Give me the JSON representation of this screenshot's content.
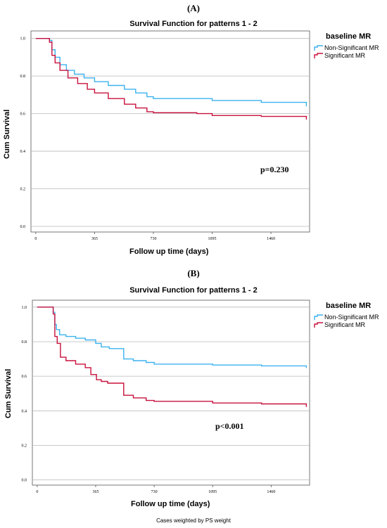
{
  "footnote": "Cases weighted by PS weight",
  "colors": {
    "non_significant": "#3bb2f0",
    "significant": "#c8103c",
    "grid": "#b8b8b8"
  },
  "chart_data": [
    {
      "panel_label": "(A)",
      "type": "line",
      "title": "Survival Function for patterns 1 - 2",
      "xlabel": "Follow up time (days)",
      "ylabel": "Cum Survival",
      "xticks": [
        0,
        365,
        730,
        1095,
        1460
      ],
      "yticks": [
        0.0,
        0.2,
        0.4,
        0.6,
        0.8,
        1.0
      ],
      "xlim": [
        -30,
        1700
      ],
      "ylim": [
        -0.03,
        1.04
      ],
      "legend_title": "baseline MR",
      "legend_position": "top-right",
      "annotation": "p=0.230",
      "grid": "horizontal",
      "series": [
        {
          "name": "Non-Significant MR",
          "color": "#3bb2f0",
          "x": [
            0,
            60,
            85,
            100,
            120,
            150,
            190,
            240,
            300,
            365,
            450,
            550,
            620,
            690,
            730,
            1000,
            1095,
            1400,
            1680
          ],
          "y": [
            1.0,
            1.0,
            0.99,
            0.94,
            0.9,
            0.86,
            0.83,
            0.81,
            0.79,
            0.77,
            0.75,
            0.73,
            0.71,
            0.69,
            0.68,
            0.68,
            0.67,
            0.66,
            0.65
          ]
        },
        {
          "name": "Significant MR",
          "color": "#c8103c",
          "x": [
            0,
            60,
            85,
            100,
            120,
            150,
            200,
            260,
            320,
            365,
            450,
            550,
            620,
            690,
            730,
            1000,
            1095,
            1400,
            1680
          ],
          "y": [
            1.0,
            1.0,
            0.98,
            0.91,
            0.87,
            0.83,
            0.79,
            0.76,
            0.73,
            0.71,
            0.68,
            0.65,
            0.63,
            0.61,
            0.605,
            0.6,
            0.59,
            0.585,
            0.58
          ]
        }
      ]
    },
    {
      "panel_label": "(B)",
      "type": "line",
      "title": "Survival Function for patterns 1 - 2",
      "xlabel": "Follow up time (days)",
      "ylabel": "Cum Survival",
      "xticks": [
        0,
        365,
        730,
        1095,
        1460
      ],
      "yticks": [
        0.0,
        0.2,
        0.4,
        0.6,
        0.8,
        1.0
      ],
      "xlim": [
        -30,
        1700
      ],
      "ylim": [
        -0.03,
        1.04
      ],
      "legend_title": "baseline MR",
      "legend_position": "top-right",
      "annotation": "p<0.001",
      "grid": "horizontal",
      "series": [
        {
          "name": "Non-Significant MR",
          "color": "#3bb2f0",
          "x": [
            0,
            80,
            100,
            110,
            120,
            140,
            180,
            240,
            300,
            365,
            400,
            450,
            530,
            540,
            600,
            680,
            730,
            1000,
            1095,
            1400,
            1680
          ],
          "y": [
            1.0,
            1.0,
            0.97,
            0.9,
            0.87,
            0.84,
            0.83,
            0.82,
            0.81,
            0.79,
            0.77,
            0.76,
            0.76,
            0.7,
            0.69,
            0.68,
            0.67,
            0.67,
            0.665,
            0.66,
            0.66
          ]
        },
        {
          "name": "Significant MR",
          "color": "#c8103c",
          "x": [
            0,
            80,
            100,
            110,
            125,
            145,
            180,
            240,
            300,
            335,
            370,
            400,
            440,
            530,
            540,
            600,
            680,
            730,
            1000,
            1095,
            1400,
            1680
          ],
          "y": [
            1.0,
            1.0,
            0.96,
            0.83,
            0.79,
            0.71,
            0.69,
            0.67,
            0.65,
            0.61,
            0.58,
            0.57,
            0.56,
            0.56,
            0.49,
            0.475,
            0.46,
            0.455,
            0.455,
            0.445,
            0.44,
            0.435
          ]
        }
      ]
    }
  ]
}
